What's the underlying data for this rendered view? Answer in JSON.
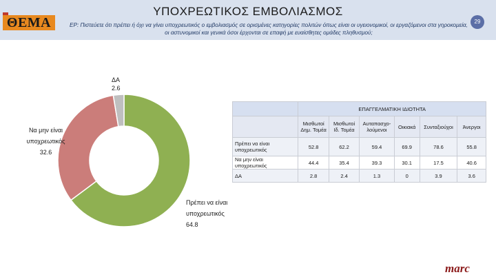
{
  "header": {
    "logo_text": "ΘΕΜΑ",
    "title": "ΥΠΟΧΡΕΩΤΙΚΟΣ ΕΜΒΟΛΙΑΣΜΟΣ",
    "question": "ΕΡ: Πιστεύετε ότι πρέπει ή όχι να γίνει υποχρεωτικός ο εμβολιασμός σε ορισμένες κατηγορίες πολιτών όπως είναι οι υγειονομικοί, οι εργαζόμενοι στα γηροκομεία, οι αστυνομικοί και γενικά όσοι έρχονται σε επαφή με ευαίσθητες ομάδες πληθυσμού;",
    "page_number": "29"
  },
  "chart_data": [
    {
      "type": "pie",
      "variant": "donut",
      "categories": [
        "Πρέπει να είναι υποχρεωτικός",
        "Να μην είναι υποχρεωτικός",
        "ΔΑ"
      ],
      "values": [
        64.8,
        32.6,
        2.6
      ],
      "colors": [
        "#8fb052",
        "#cb7d7a",
        "#bfbfbf"
      ],
      "labels": [
        {
          "text": "Πρέπει να είναι υποχρεωτικός",
          "value": "64.8"
        },
        {
          "text": "Να μην είναι υποχρεωτικός",
          "value": "32.6"
        },
        {
          "text": "ΔΑ",
          "value": "2.6"
        }
      ]
    },
    {
      "type": "table",
      "group_header": "ΕΠΑΓΓΕΛΜΑΤΙΚΗ ΙΔΙΟΤΗΤΑ",
      "columns": [
        "Μισθωτοί Δημ. Τομέα",
        "Μισθωτοί Ιδ. Τομέα",
        "Αυταπασχο-λούμενοι",
        "Οικιακά",
        "Συνταξιούχοι",
        "Άνεργοι"
      ],
      "rows": [
        {
          "label": "Πρέπει να είναι υποχρεωτικός",
          "values": [
            "52.8",
            "62.2",
            "59.4",
            "69.9",
            "78.6",
            "55.8"
          ]
        },
        {
          "label": "Να μην είναι υποχρεωτικός",
          "values": [
            "44.4",
            "35.4",
            "39.3",
            "30.1",
            "17.5",
            "40.6"
          ]
        },
        {
          "label": "ΔΑ",
          "values": [
            "2.8",
            "2.4",
            "1.3",
            "0",
            "3.9",
            "3.6"
          ]
        }
      ]
    }
  ],
  "footer": {
    "brand": "marc"
  }
}
